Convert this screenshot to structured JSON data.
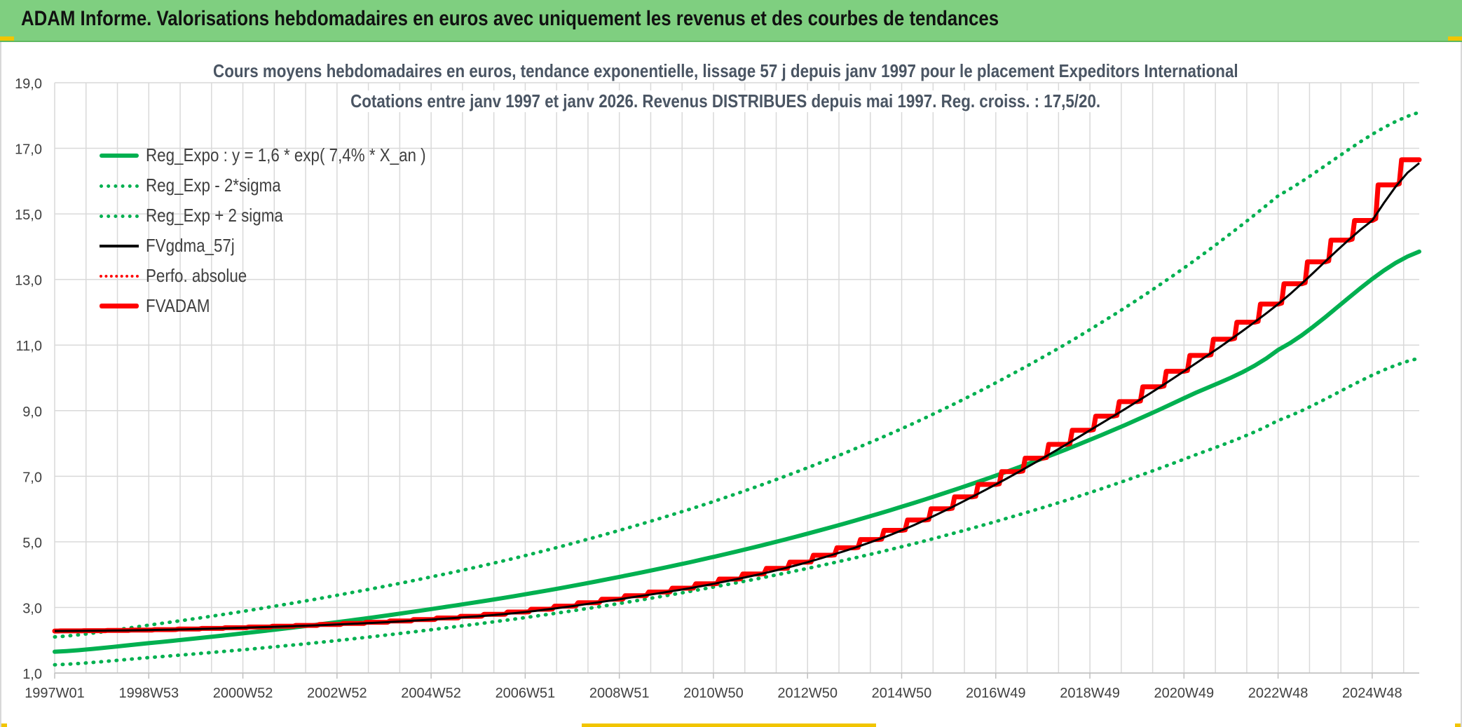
{
  "banner": {
    "title": "ADAM Informe. Valorisations hebdomadaires en euros avec uniquement les revenus et des courbes de tendances"
  },
  "colors": {
    "banner_bg": "#7fcf80",
    "green": "#00b050",
    "red": "#ff0000",
    "black": "#000000",
    "grid": "#d9d9d9",
    "accent_corner": "#f2c500"
  },
  "chart_data": {
    "type": "line",
    "title_line1": "Cours moyens hebdomadaires en euros, tendance exponentielle, lissage 57 j depuis janv 1997 pour le placement Expeditors International",
    "title_line2": "Cotations entre janv 1997 et janv 2026. Revenus DISTRIBUES depuis mai 1997. Reg. croiss. : 17,5/20.",
    "xlabel": "",
    "ylabel": "",
    "x_range_years": [
      1997.0,
      2026.0
    ],
    "ylim": [
      1.0,
      19.0
    ],
    "y_ticks": [
      "1,0",
      "3,0",
      "5,0",
      "7,0",
      "9,0",
      "11,0",
      "13,0",
      "15,0",
      "17,0",
      "19,0"
    ],
    "x_ticks": [
      {
        "label": "1997W01",
        "year": 1997.0
      },
      {
        "label": "1998W53",
        "year": 1999.0
      },
      {
        "label": "2000W52",
        "year": 2001.0
      },
      {
        "label": "2002W52",
        "year": 2003.0
      },
      {
        "label": "2004W52",
        "year": 2005.0
      },
      {
        "label": "2006W51",
        "year": 2007.0
      },
      {
        "label": "2008W51",
        "year": 2009.0
      },
      {
        "label": "2010W50",
        "year": 2011.0
      },
      {
        "label": "2012W50",
        "year": 2013.0
      },
      {
        "label": "2014W50",
        "year": 2015.0
      },
      {
        "label": "2016W49",
        "year": 2017.0
      },
      {
        "label": "2018W49",
        "year": 2019.0
      },
      {
        "label": "2020W49",
        "year": 2021.0
      },
      {
        "label": "2022W48",
        "year": 2023.0
      },
      {
        "label": "2024W48",
        "year": 2025.0
      }
    ],
    "grid": true,
    "legend_position": "top-left",
    "series": [
      {
        "name": "Reg_Expo : y = 1,6 * exp( 7,4% *  X_an )",
        "style": "solid",
        "color": "#00b050",
        "width": 6,
        "x": [
          1997,
          1999,
          2001,
          2003,
          2005,
          2007,
          2009,
          2011,
          2013,
          2015,
          2017,
          2019,
          2021,
          2023,
          2026
        ],
        "y": [
          1.65,
          1.91,
          2.21,
          2.55,
          2.95,
          3.4,
          3.93,
          4.54,
          5.25,
          6.07,
          7.02,
          8.11,
          9.38,
          10.85,
          13.85
        ]
      },
      {
        "name": "Reg_Exp - 2*sigma",
        "style": "dotted",
        "color": "#00b050",
        "width": 5,
        "x": [
          1997,
          1999,
          2001,
          2003,
          2005,
          2007,
          2009,
          2011,
          2013,
          2015,
          2017,
          2019,
          2021,
          2023,
          2026
        ],
        "y": [
          1.25,
          1.47,
          1.71,
          1.99,
          2.32,
          2.69,
          3.12,
          3.62,
          4.19,
          4.85,
          5.62,
          6.5,
          7.52,
          8.7,
          10.6
        ]
      },
      {
        "name": "Reg_Exp + 2 sigma",
        "style": "dotted",
        "color": "#00b050",
        "width": 5,
        "x": [
          1997,
          1999,
          2001,
          2003,
          2005,
          2007,
          2009,
          2011,
          2013,
          2015,
          2017,
          2019,
          2021,
          2023,
          2026
        ],
        "y": [
          2.1,
          2.46,
          2.88,
          3.37,
          3.93,
          4.58,
          5.35,
          6.23,
          7.26,
          8.45,
          9.85,
          11.47,
          13.35,
          15.55,
          18.1
        ]
      },
      {
        "name": "FVgdma_57j",
        "style": "solid",
        "color": "#000000",
        "width": 3,
        "x": [
          1997,
          1999,
          2001,
          2003,
          2005,
          2007,
          2009,
          2011,
          2013,
          2015,
          2017,
          2019,
          2021,
          2023,
          2025,
          2026
        ],
        "y": [
          2.28,
          2.31,
          2.38,
          2.48,
          2.63,
          2.86,
          3.25,
          3.72,
          4.38,
          5.35,
          6.75,
          8.4,
          10.2,
          12.25,
          14.8,
          16.55
        ]
      },
      {
        "name": "Perfo. absolue",
        "style": "dotted",
        "color": "#ff0000",
        "width": 4,
        "x": [],
        "y": []
      },
      {
        "name": "FVADAM",
        "style": "step",
        "color": "#ff0000",
        "width": 7,
        "x": [
          1997,
          1999,
          2001,
          2003,
          2005,
          2007,
          2009,
          2011,
          2013,
          2015,
          2017,
          2019,
          2021,
          2023,
          2025,
          2026
        ],
        "y": [
          2.28,
          2.31,
          2.38,
          2.48,
          2.63,
          2.86,
          3.25,
          3.72,
          4.38,
          5.35,
          6.75,
          8.4,
          10.2,
          12.25,
          14.8,
          16.65
        ]
      }
    ]
  }
}
